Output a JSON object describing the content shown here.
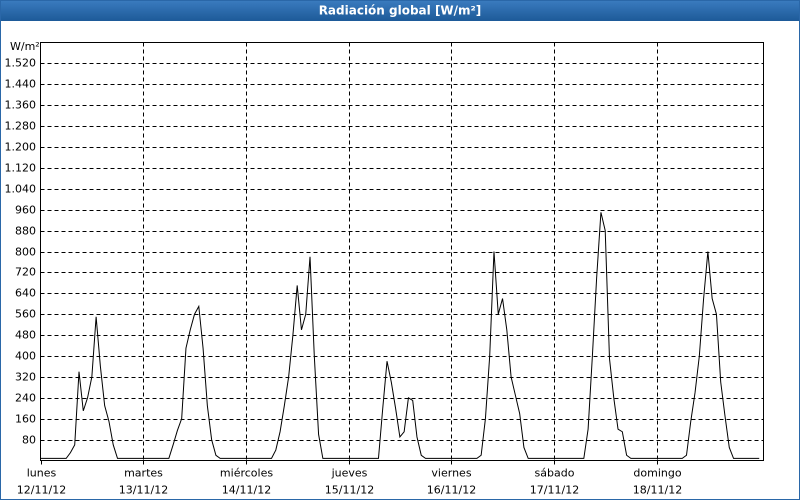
{
  "chart_data": {
    "type": "line",
    "title": "Radiación global [W/m²]",
    "y_unit": "W/m²",
    "color": "#000000",
    "grid": true,
    "xlim": [
      0,
      169
    ],
    "ylim": [
      0,
      1600
    ],
    "xticks": [
      {
        "value": 0,
        "label": "lunes"
      },
      {
        "value": 24,
        "label": "martes"
      },
      {
        "value": 48,
        "label": "miércoles"
      },
      {
        "value": 72,
        "label": "jueves"
      },
      {
        "value": 96,
        "label": "viernes"
      },
      {
        "value": 120,
        "label": "sábado"
      },
      {
        "value": 144,
        "label": "domingo"
      }
    ],
    "xtick_dates": [
      "12/11/12",
      "13/11/12",
      "14/11/12",
      "15/11/12",
      "16/11/12",
      "17/11/12",
      "18/11/12"
    ],
    "yticks": [
      80,
      160,
      240,
      320,
      400,
      480,
      560,
      640,
      720,
      800,
      880,
      960,
      {
        "value": 1040,
        "label": "1.040"
      },
      {
        "value": 1120,
        "label": "1.120"
      },
      {
        "value": 1200,
        "label": "1.200"
      },
      {
        "value": 1280,
        "label": "1.280"
      },
      {
        "value": 1360,
        "label": "1.360"
      },
      {
        "value": 1440,
        "label": "1.440"
      },
      {
        "value": 1520,
        "label": "1.520"
      }
    ],
    "x": [
      0,
      1,
      2,
      3,
      4,
      5,
      6,
      7,
      8,
      9,
      10,
      11,
      12,
      13,
      14,
      15,
      16,
      17,
      18,
      19,
      20,
      21,
      22,
      23,
      24,
      25,
      26,
      27,
      28,
      29,
      30,
      31,
      32,
      33,
      34,
      35,
      36,
      37,
      38,
      39,
      40,
      41,
      42,
      43,
      44,
      45,
      46,
      47,
      48,
      49,
      50,
      51,
      52,
      53,
      54,
      55,
      56,
      57,
      58,
      59,
      60,
      61,
      62,
      63,
      64,
      65,
      66,
      67,
      68,
      69,
      70,
      71,
      72,
      73,
      74,
      75,
      76,
      77,
      78,
      79,
      80,
      81,
      82,
      83,
      84,
      85,
      86,
      87,
      88,
      89,
      90,
      91,
      92,
      93,
      94,
      95,
      96,
      97,
      98,
      99,
      100,
      101,
      102,
      103,
      104,
      105,
      106,
      107,
      108,
      109,
      110,
      111,
      112,
      113,
      114,
      115,
      116,
      117,
      118,
      119,
      120,
      121,
      122,
      123,
      124,
      125,
      126,
      127,
      128,
      129,
      130,
      131,
      132,
      133,
      134,
      135,
      136,
      137,
      138,
      139,
      140,
      141,
      142,
      143,
      144,
      145,
      146,
      147,
      148,
      149,
      150,
      151,
      152,
      153,
      154,
      155,
      156,
      157,
      158,
      159,
      160,
      161,
      162,
      163,
      164,
      165,
      166,
      167,
      168
    ],
    "values": [
      8,
      8,
      8,
      8,
      8,
      8,
      8,
      30,
      60,
      340,
      190,
      240,
      320,
      550,
      360,
      210,
      150,
      60,
      8,
      8,
      8,
      8,
      8,
      8,
      8,
      8,
      8,
      8,
      8,
      8,
      8,
      60,
      115,
      160,
      430,
      500,
      560,
      590,
      430,
      210,
      80,
      20,
      8,
      8,
      8,
      8,
      8,
      8,
      8,
      8,
      8,
      8,
      8,
      8,
      8,
      40,
      110,
      210,
      320,
      480,
      670,
      500,
      560,
      780,
      400,
      100,
      8,
      8,
      8,
      8,
      8,
      8,
      8,
      8,
      8,
      8,
      8,
      8,
      8,
      8,
      200,
      380,
      300,
      200,
      90,
      110,
      240,
      230,
      90,
      20,
      8,
      8,
      8,
      8,
      8,
      8,
      8,
      8,
      8,
      8,
      8,
      8,
      8,
      20,
      160,
      400,
      800,
      560,
      620,
      500,
      320,
      250,
      180,
      50,
      8,
      8,
      8,
      8,
      8,
      8,
      8,
      8,
      8,
      8,
      8,
      8,
      8,
      8,
      120,
      400,
      700,
      950,
      880,
      390,
      240,
      120,
      110,
      20,
      8,
      8,
      8,
      8,
      8,
      8,
      8,
      8,
      8,
      8,
      8,
      8,
      8,
      20,
      150,
      260,
      400,
      620,
      800,
      620,
      560,
      300,
      170,
      50,
      8,
      8,
      8,
      8,
      8,
      8,
      8
    ]
  }
}
